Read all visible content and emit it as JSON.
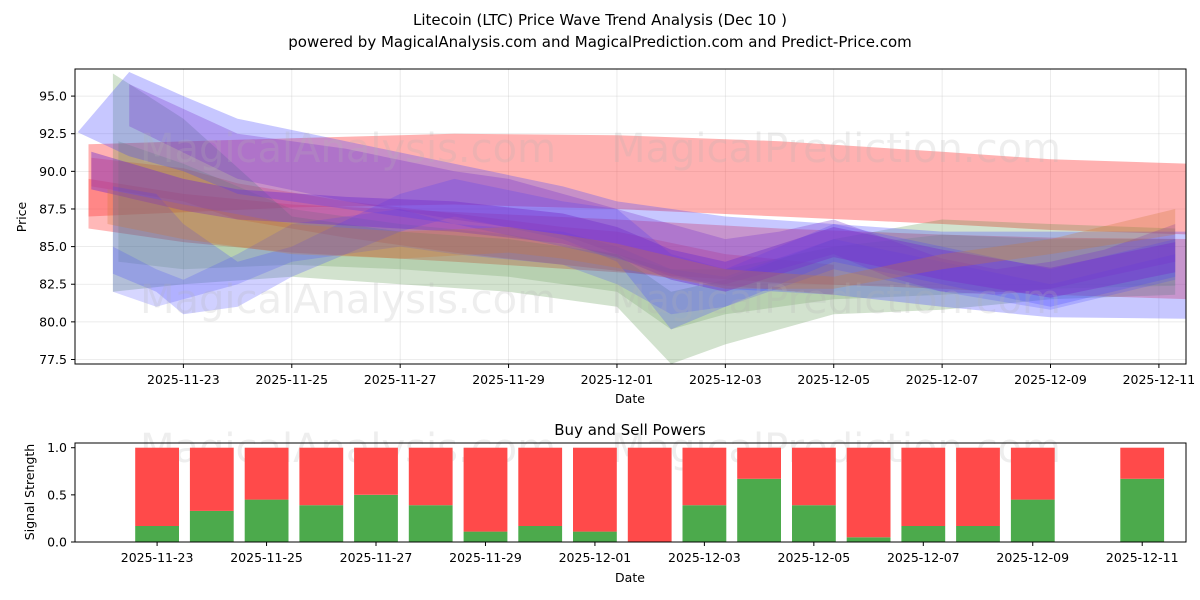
{
  "chart_data": [
    {
      "type": "line",
      "title": "Litecoin (LTC) Price Wave Trend Analysis (Dec 10 )",
      "subtitle": "powered by MagicalAnalysis.com and MagicalPrediction.com and Predict-Price.com",
      "xlabel": "Date",
      "ylabel": "Price",
      "xlim": [
        -1.0,
        19.5
      ],
      "ylim": [
        77.2,
        96.8
      ],
      "grid": true,
      "x_ticks": [
        {
          "pos": 1,
          "label": "2025-11-23"
        },
        {
          "pos": 3,
          "label": "2025-11-25"
        },
        {
          "pos": 5,
          "label": "2025-11-27"
        },
        {
          "pos": 7,
          "label": "2025-11-29"
        },
        {
          "pos": 9,
          "label": "2025-12-01"
        },
        {
          "pos": 11,
          "label": "2025-12-03"
        },
        {
          "pos": 13,
          "label": "2025-12-05"
        },
        {
          "pos": 15,
          "label": "2025-12-07"
        },
        {
          "pos": 17,
          "label": "2025-12-09"
        },
        {
          "pos": 19,
          "label": "2025-12-11"
        }
      ],
      "y_ticks": [
        {
          "value": 77.5,
          "label": "77.5"
        },
        {
          "value": 80.0,
          "label": "80.0"
        },
        {
          "value": 82.5,
          "label": "82.5"
        },
        {
          "value": 85.0,
          "label": "85.0"
        },
        {
          "value": 87.5,
          "label": "87.5"
        },
        {
          "value": 90.0,
          "label": "90.0"
        },
        {
          "value": 92.5,
          "label": "92.5"
        },
        {
          "value": 95.0,
          "label": "95.0"
        }
      ],
      "bands": [
        {
          "color": "#ff4444",
          "opacity": 0.42,
          "x": [
            -0.75,
            3,
            6,
            9,
            12,
            15,
            17,
            19.6
          ],
          "upper": [
            91.8,
            92.2,
            92.5,
            92.4,
            92.0,
            91.3,
            90.8,
            90.5
          ],
          "lower": [
            87.0,
            87.6,
            87.8,
            87.5,
            87.0,
            86.5,
            86.1,
            85.8
          ]
        },
        {
          "color": "#ff4444",
          "opacity": 0.38,
          "x": [
            -0.75,
            1,
            3,
            6,
            9,
            12,
            15,
            17,
            19.6
          ],
          "upper": [
            89.5,
            88.5,
            87.8,
            87.3,
            86.8,
            86.2,
            85.8,
            85.6,
            85.5
          ],
          "lower": [
            86.2,
            85.3,
            84.6,
            84.0,
            83.3,
            82.6,
            82.2,
            81.8,
            81.5
          ]
        },
        {
          "color": "#ff4444",
          "opacity": 0.35,
          "x": [
            -0.7,
            1,
            2,
            4,
            6,
            8,
            9,
            11,
            13
          ],
          "upper": [
            90.9,
            90.2,
            89.2,
            88.0,
            87.2,
            86.3,
            86.0,
            84.5,
            83.8
          ],
          "lower": [
            89.0,
            88.0,
            86.8,
            85.6,
            84.6,
            83.8,
            83.4,
            82.4,
            81.8
          ]
        },
        {
          "color": "#4a8a3a",
          "opacity": 0.25,
          "x": [
            -0.3,
            1,
            3,
            5,
            7,
            9,
            10,
            11,
            13,
            15,
            17,
            19.3
          ],
          "upper": [
            96.5,
            93.5,
            87.0,
            86.0,
            85.5,
            84.5,
            82.0,
            82.8,
            85.5,
            86.8,
            86.5,
            86.2
          ],
          "lower": [
            82.0,
            82.5,
            83.0,
            82.5,
            82.0,
            81.0,
            77.2,
            78.5,
            80.5,
            80.8,
            81.5,
            81.8
          ]
        },
        {
          "color": "#4a8a3a",
          "opacity": 0.2,
          "x": [
            -0.2,
            1,
            3,
            5,
            7,
            9,
            10,
            11,
            13,
            15,
            17,
            19.3
          ],
          "upper": [
            92.0,
            90.5,
            87.5,
            86.5,
            85.8,
            84.5,
            83.5,
            83.5,
            85.0,
            85.8,
            85.5,
            85.5
          ],
          "lower": [
            84.0,
            83.5,
            83.8,
            83.5,
            83.0,
            82.0,
            79.5,
            80.5,
            81.5,
            81.8,
            82.2,
            82.4
          ]
        },
        {
          "color": "#4444ff",
          "opacity": 0.3,
          "x": [
            -0.95,
            0,
            1,
            2,
            4,
            6,
            8,
            9,
            11,
            13,
            15,
            17,
            19.6
          ],
          "upper": [
            92.6,
            96.6,
            95.0,
            93.5,
            92.0,
            90.5,
            89.0,
            88.0,
            87.0,
            86.5,
            86.0,
            86.0,
            86.0
          ],
          "lower": [
            92.6,
            91.0,
            90.0,
            88.5,
            87.5,
            86.5,
            85.0,
            84.2,
            82.2,
            81.8,
            81.0,
            80.3,
            80.2
          ]
        },
        {
          "color": "#4444ff",
          "opacity": 0.25,
          "x": [
            -0.3,
            0.5,
            1,
            2,
            3,
            5,
            6,
            8,
            9,
            10,
            11,
            13,
            15,
            17,
            19.3
          ],
          "upper": [
            89.0,
            88.5,
            86.5,
            84.0,
            85.0,
            88.5,
            89.5,
            88.0,
            87.5,
            84.5,
            83.5,
            86.5,
            85.0,
            83.5,
            85.5
          ],
          "lower": [
            83.2,
            82.0,
            80.5,
            81.0,
            83.0,
            86.0,
            87.0,
            85.5,
            84.0,
            79.5,
            81.0,
            84.0,
            82.5,
            81.0,
            83.0
          ]
        },
        {
          "color": "#4444ff",
          "opacity": 0.22,
          "x": [
            -0.3,
            0.5,
            1,
            2,
            3,
            5,
            6,
            8,
            9,
            10,
            11,
            13,
            15,
            17,
            19.3
          ],
          "upper": [
            85.0,
            83.5,
            82.8,
            84.5,
            86.5,
            87.5,
            86.5,
            86.0,
            85.0,
            83.5,
            83.0,
            85.5,
            84.0,
            82.5,
            84.5
          ],
          "lower": [
            82.0,
            81.0,
            81.5,
            82.5,
            84.0,
            85.0,
            84.5,
            83.8,
            82.5,
            80.5,
            81.0,
            83.5,
            82.0,
            80.8,
            82.8
          ]
        },
        {
          "color": "#7733cc",
          "opacity": 0.45,
          "x": [
            -0.7,
            1,
            2,
            4,
            6,
            8,
            9,
            10,
            11,
            13,
            15,
            17,
            19.3
          ],
          "upper": [
            91.3,
            89.5,
            88.8,
            88.3,
            88.0,
            87.2,
            86.3,
            84.8,
            84.0,
            86.3,
            84.8,
            83.6,
            85.3
          ],
          "lower": [
            88.8,
            87.4,
            86.8,
            86.4,
            86.0,
            85.2,
            84.3,
            82.8,
            82.0,
            84.3,
            82.8,
            81.6,
            83.3
          ]
        },
        {
          "color": "#7733cc",
          "opacity": 0.3,
          "x": [
            0,
            2,
            4,
            6,
            7,
            8,
            9,
            10,
            11,
            12,
            13,
            14,
            15,
            16,
            17,
            18,
            19.3
          ],
          "upper": [
            95.8,
            92.5,
            91.5,
            90.0,
            89.5,
            88.5,
            87.5,
            86.5,
            85.5,
            86.0,
            86.8,
            85.5,
            84.2,
            83.5,
            84.0,
            84.8,
            86.5
          ],
          "lower": [
            93.0,
            89.5,
            88.0,
            86.8,
            86.3,
            85.8,
            84.5,
            83.0,
            82.5,
            83.5,
            84.5,
            83.0,
            82.0,
            81.8,
            82.2,
            83.0,
            84.0
          ]
        },
        {
          "color": "#cc7733",
          "opacity": 0.28,
          "x": [
            -0.4,
            1,
            3,
            5,
            7,
            8,
            9,
            11,
            13,
            15,
            17,
            19.3
          ],
          "upper": [
            88.8,
            87.8,
            86.5,
            86.0,
            86.3,
            85.8,
            85.2,
            83.5,
            83.0,
            84.5,
            85.5,
            87.5
          ],
          "lower": [
            86.5,
            85.5,
            84.5,
            84.2,
            84.6,
            84.2,
            83.6,
            82.2,
            82.2,
            83.5,
            84.5,
            85.8
          ]
        }
      ],
      "watermarks": [
        "MagicalAnalysis.com",
        "MagicalPrediction.com",
        "MagicalAnalysis.com",
        "MagicalPrediction.com"
      ]
    },
    {
      "type": "bar",
      "title": "Buy and Sell Powers",
      "xlabel": "Date",
      "ylabel": "Signal Strength",
      "ylim": [
        0,
        1.05
      ],
      "xlim": [
        -0.5,
        19.8
      ],
      "x_ticks": [
        {
          "pos": 1,
          "label": "2025-11-23"
        },
        {
          "pos": 3,
          "label": "2025-11-25"
        },
        {
          "pos": 5,
          "label": "2025-11-27"
        },
        {
          "pos": 7,
          "label": "2025-11-29"
        },
        {
          "pos": 9,
          "label": "2025-12-01"
        },
        {
          "pos": 11,
          "label": "2025-12-03"
        },
        {
          "pos": 13,
          "label": "2025-12-05"
        },
        {
          "pos": 15,
          "label": "2025-12-07"
        },
        {
          "pos": 17,
          "label": "2025-12-09"
        },
        {
          "pos": 19,
          "label": "2025-12-11"
        }
      ],
      "y_ticks": [
        {
          "value": 0.0,
          "label": "0.0"
        },
        {
          "value": 0.5,
          "label": "0.5"
        },
        {
          "value": 1.0,
          "label": "1.0"
        }
      ],
      "x": [
        1,
        2,
        3,
        4,
        5,
        6,
        7,
        8,
        9,
        10,
        11,
        12,
        13,
        14,
        15,
        16,
        17,
        19
      ],
      "series": [
        {
          "name": "Buy",
          "color": "#4caa4c",
          "values": [
            0.17,
            0.33,
            0.45,
            0.39,
            0.5,
            0.39,
            0.11,
            0.17,
            0.11,
            0.0,
            0.39,
            0.67,
            0.39,
            0.05,
            0.17,
            0.17,
            0.45,
            0.67
          ]
        },
        {
          "name": "Sell",
          "color": "#ff4a4a",
          "values": [
            0.83,
            0.67,
            0.55,
            0.61,
            0.5,
            0.61,
            0.89,
            0.83,
            0.89,
            1.0,
            0.61,
            0.33,
            0.61,
            0.95,
            0.83,
            0.83,
            0.55,
            0.33
          ]
        }
      ],
      "watermarks": [
        "MagicalAnalysis.com",
        "MagicalPrediction.com"
      ]
    }
  ]
}
